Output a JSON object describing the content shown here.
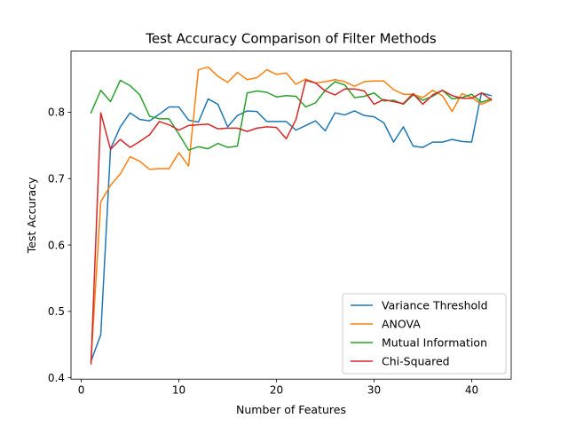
{
  "chart_data": {
    "type": "line",
    "title": "Test Accuracy Comparison of Filter Methods",
    "xlabel": "Number of Features",
    "ylabel": "Test Accuracy",
    "xlim": [
      -1.05,
      44.05
    ],
    "ylim": [
      0.398,
      0.892
    ],
    "xticks": [
      0,
      10,
      20,
      30,
      40
    ],
    "yticks": [
      0.4,
      0.5,
      0.6,
      0.7,
      0.8
    ],
    "ytick_labels": [
      "0.4",
      "0.5",
      "0.6",
      "0.7",
      "0.8"
    ],
    "grid": false,
    "legend_position": "lower-right",
    "x": [
      1,
      2,
      3,
      4,
      5,
      6,
      7,
      8,
      9,
      10,
      11,
      12,
      13,
      14,
      15,
      16,
      17,
      18,
      19,
      20,
      21,
      22,
      23,
      24,
      25,
      26,
      27,
      28,
      29,
      30,
      31,
      32,
      33,
      34,
      35,
      36,
      37,
      38,
      39,
      40,
      41,
      42
    ],
    "series": [
      {
        "name": "Variance Threshold",
        "color": "#1f77b4",
        "values": [
          0.425,
          0.465,
          0.745,
          0.778,
          0.799,
          0.789,
          0.787,
          0.797,
          0.808,
          0.808,
          0.788,
          0.785,
          0.82,
          0.812,
          0.778,
          0.795,
          0.802,
          0.801,
          0.786,
          0.786,
          0.786,
          0.773,
          0.78,
          0.787,
          0.772,
          0.799,
          0.796,
          0.802,
          0.795,
          0.793,
          0.784,
          0.755,
          0.778,
          0.749,
          0.747,
          0.755,
          0.755,
          0.759,
          0.756,
          0.755,
          0.829,
          0.825
        ]
      },
      {
        "name": "ANOVA",
        "color": "#ff7f0e",
        "values": [
          0.425,
          0.665,
          0.69,
          0.707,
          0.733,
          0.726,
          0.714,
          0.715,
          0.715,
          0.739,
          0.719,
          0.864,
          0.868,
          0.854,
          0.845,
          0.86,
          0.849,
          0.852,
          0.864,
          0.857,
          0.859,
          0.842,
          0.85,
          0.844,
          0.846,
          0.849,
          0.846,
          0.839,
          0.846,
          0.847,
          0.847,
          0.834,
          0.827,
          0.827,
          0.822,
          0.833,
          0.825,
          0.801,
          0.828,
          0.822,
          0.812,
          0.818
        ]
      },
      {
        "name": "Mutual Information",
        "color": "#2ca02c",
        "values": [
          0.799,
          0.833,
          0.816,
          0.848,
          0.84,
          0.826,
          0.794,
          0.79,
          0.79,
          0.767,
          0.743,
          0.748,
          0.745,
          0.753,
          0.747,
          0.749,
          0.829,
          0.832,
          0.83,
          0.823,
          0.825,
          0.824,
          0.808,
          0.814,
          0.833,
          0.846,
          0.841,
          0.822,
          0.824,
          0.829,
          0.817,
          0.818,
          0.812,
          0.826,
          0.818,
          0.824,
          0.833,
          0.82,
          0.822,
          0.827,
          0.815,
          0.82
        ]
      },
      {
        "name": "Chi-Squared",
        "color": "#d62728",
        "values": [
          0.421,
          0.799,
          0.744,
          0.759,
          0.747,
          0.756,
          0.766,
          0.786,
          0.781,
          0.773,
          0.78,
          0.781,
          0.782,
          0.775,
          0.776,
          0.776,
          0.771,
          0.776,
          0.778,
          0.777,
          0.76,
          0.789,
          0.848,
          0.844,
          0.832,
          0.826,
          0.835,
          0.835,
          0.832,
          0.812,
          0.819,
          0.816,
          0.813,
          0.828,
          0.812,
          0.826,
          0.833,
          0.825,
          0.821,
          0.821,
          0.829,
          0.819
        ]
      }
    ]
  }
}
